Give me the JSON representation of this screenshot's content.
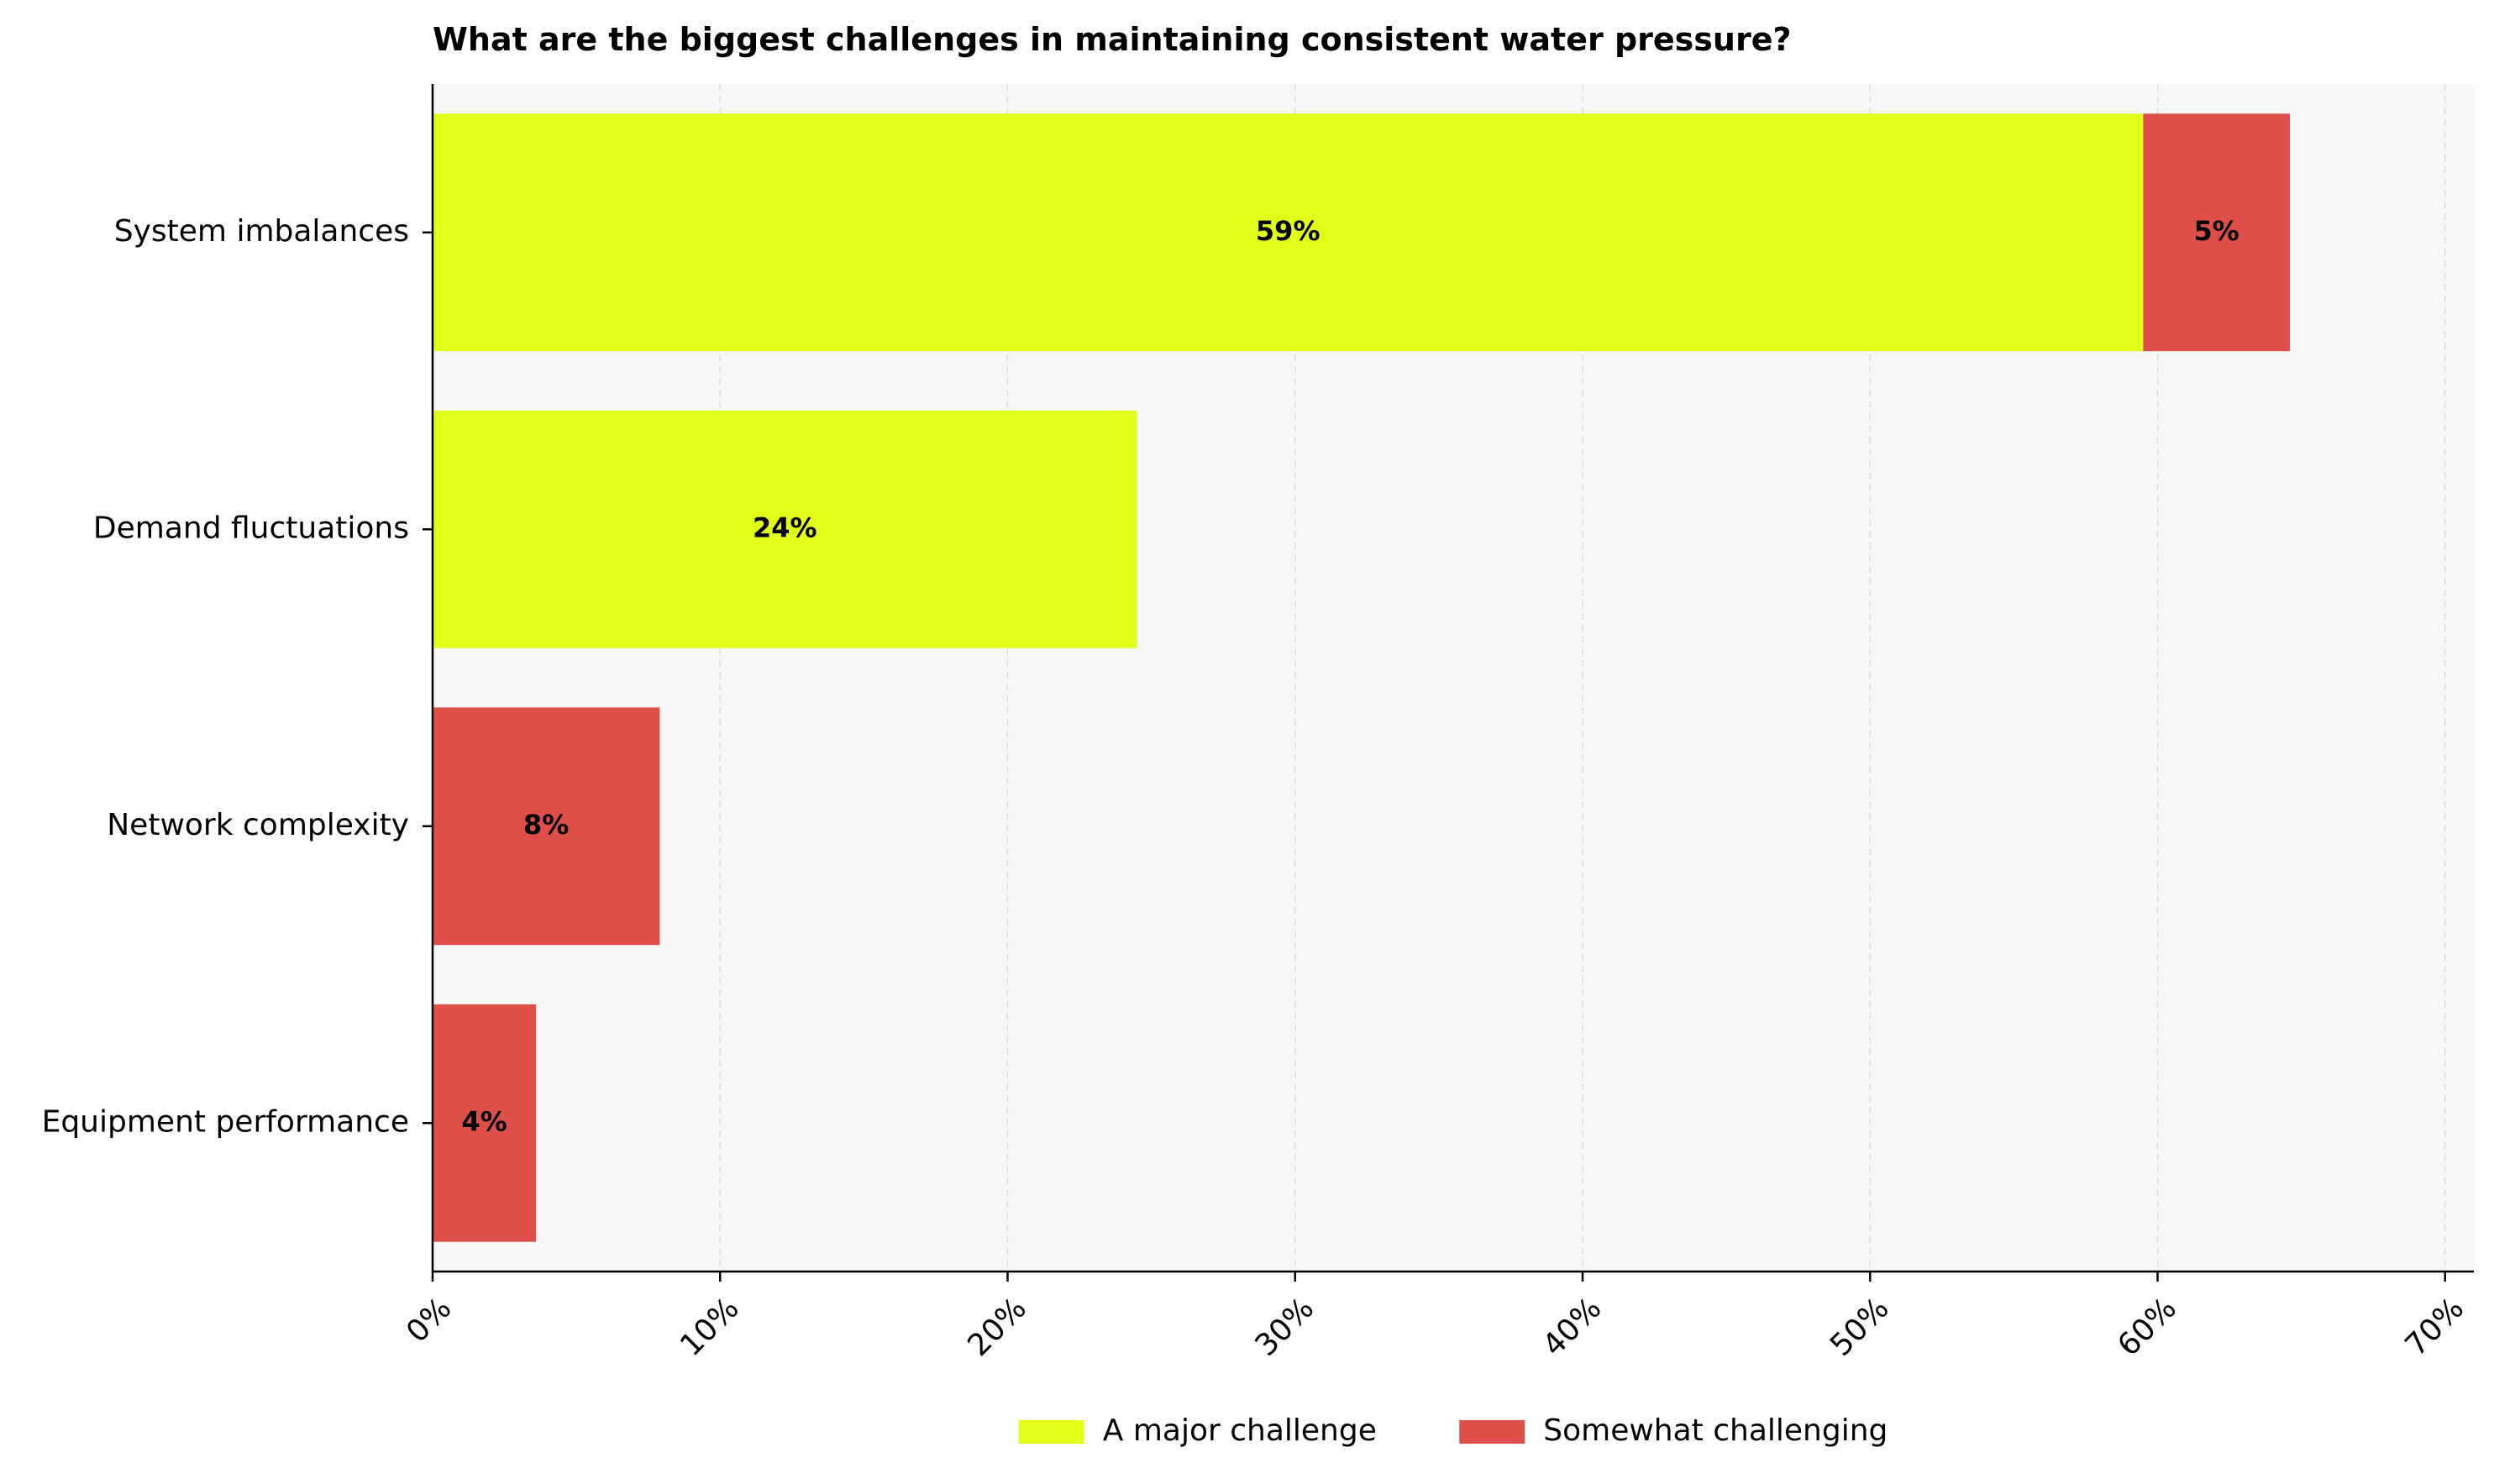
{
  "chart_data": {
    "type": "bar",
    "orientation": "horizontal",
    "stacked": true,
    "title": "What are the biggest challenges in maintaining consistent water pressure?",
    "xlabel": "",
    "ylabel": "",
    "categories": [
      "System imbalances",
      "Demand fluctuations",
      "Network complexity",
      "Equipment performance"
    ],
    "series": [
      {
        "name": "A major challenge",
        "color": "#e2ff1a",
        "values": [
          59.5,
          24.5,
          0,
          0
        ],
        "labels": [
          "59%",
          "24%",
          "",
          ""
        ]
      },
      {
        "name": "Somewhat challenging",
        "color": "#de4f4a",
        "values": [
          5.1,
          0,
          7.9,
          3.6
        ],
        "labels": [
          "5%",
          "",
          "8%",
          "4%"
        ]
      }
    ],
    "xlim": [
      0,
      71
    ],
    "xticks": [
      0,
      10,
      20,
      30,
      40,
      50,
      60,
      70
    ],
    "xtick_labels": [
      "0%",
      "10%",
      "20%",
      "30%",
      "40%",
      "50%",
      "60%",
      "70%"
    ],
    "grid": "vertical-dashed",
    "legend_placement": "bottom-center",
    "plot_background": "#f7f7f7"
  }
}
